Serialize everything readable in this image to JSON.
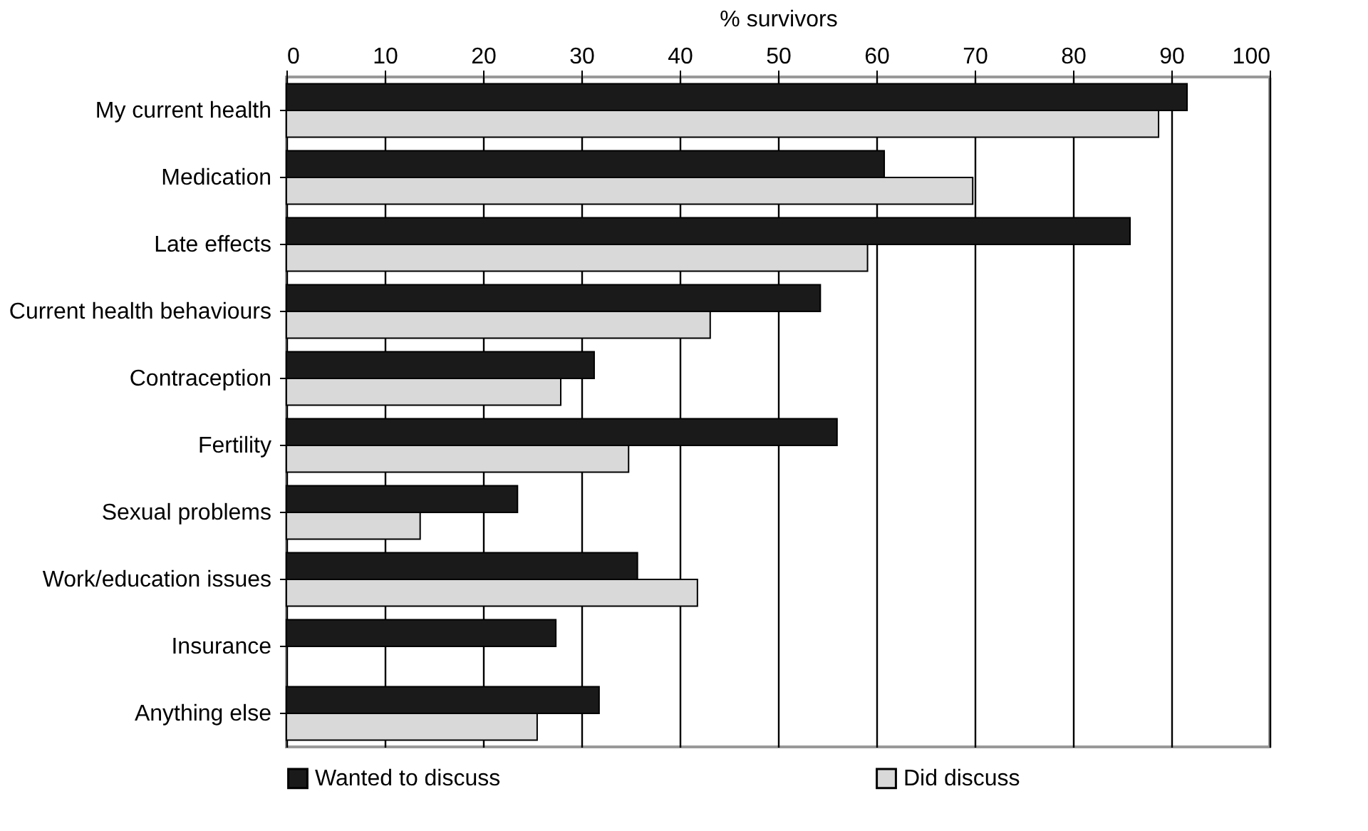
{
  "chart_data": {
    "type": "bar",
    "orientation": "horizontal",
    "xlabel": "% survivors",
    "categories": [
      "My current health",
      "Medication",
      "Late effects",
      "Current health behaviours",
      "Contraception",
      "Fertility",
      "Sexual problems",
      "Work/education issues",
      "Insurance",
      "Anything else"
    ],
    "series": [
      {
        "name": "Wanted to discuss",
        "color": "#1a1a1a",
        "values": [
          91.6,
          60.8,
          85.8,
          54.3,
          31.3,
          56.0,
          23.5,
          35.7,
          27.4,
          31.8
        ]
      },
      {
        "name": "Did discuss",
        "color": "#d9d9d9",
        "values": [
          88.7,
          69.8,
          59.1,
          43.1,
          27.9,
          34.8,
          13.6,
          41.8,
          null,
          25.5
        ]
      }
    ],
    "xlim": [
      0,
      100
    ],
    "xticks": [
      0,
      10,
      20,
      30,
      40,
      50,
      60,
      70,
      80,
      90,
      100
    ],
    "grid": "x",
    "legend": "bottom"
  }
}
